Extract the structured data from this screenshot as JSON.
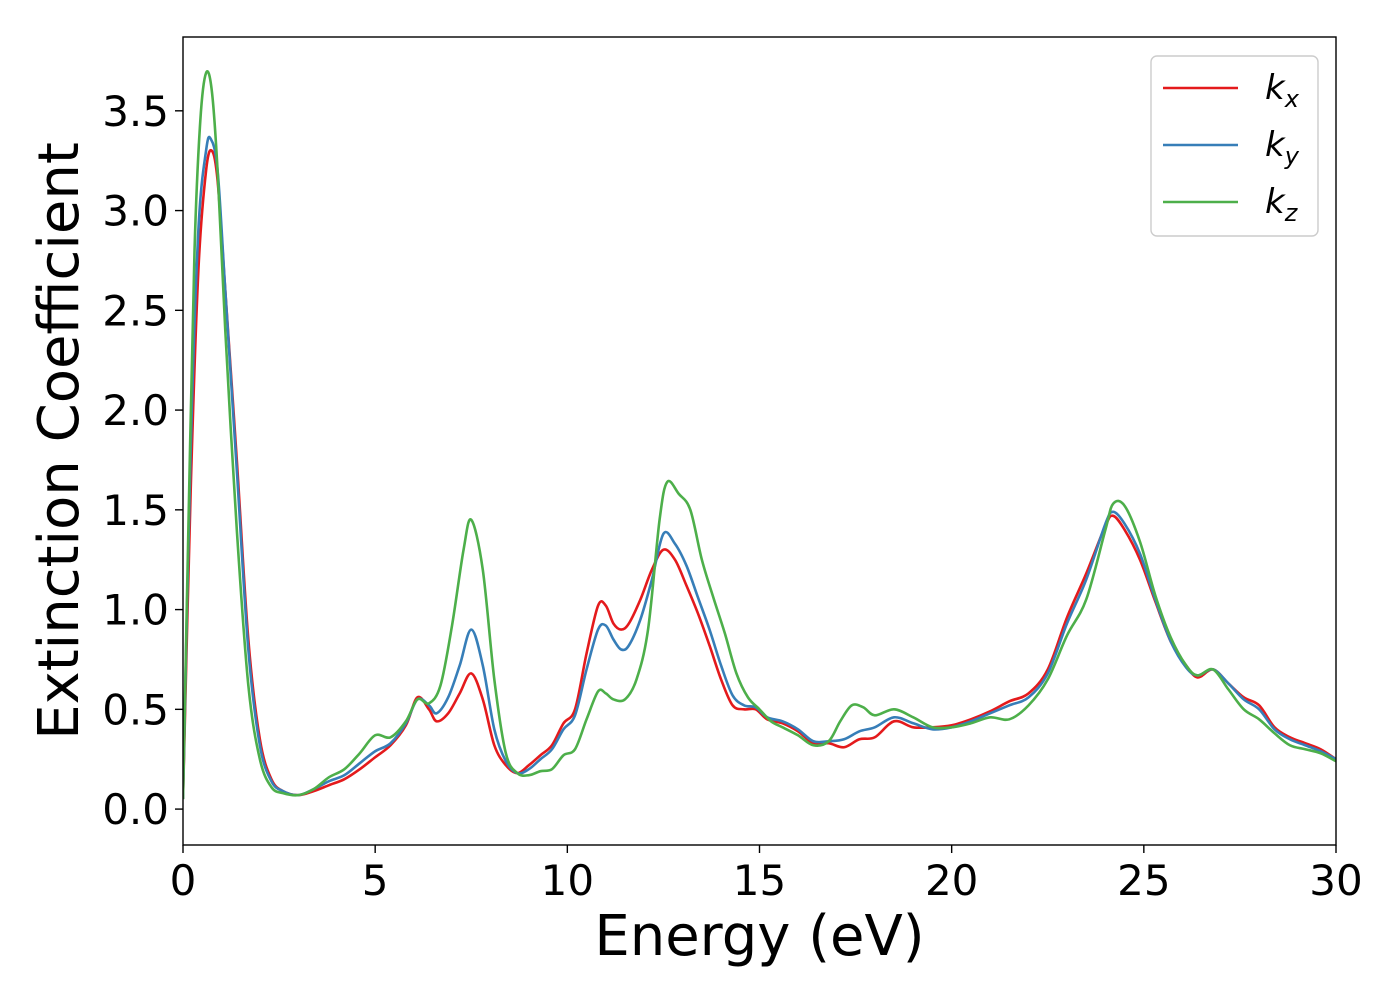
{
  "chart_data": {
    "type": "line",
    "title": "",
    "xlabel": "Energy (eV)",
    "ylabel": "Extinction Coefficient",
    "xlim": [
      0,
      30
    ],
    "ylim": [
      -0.18,
      3.87
    ],
    "xticks": [
      0,
      5,
      10,
      15,
      20,
      25,
      30
    ],
    "xtick_labels": [
      "0",
      "5",
      "10",
      "15",
      "20",
      "25",
      "30"
    ],
    "yticks": [
      0.0,
      0.5,
      1.0,
      1.5,
      2.0,
      2.5,
      3.0,
      3.5
    ],
    "ytick_labels": [
      "0.0",
      "0.5",
      "1.0",
      "1.5",
      "2.0",
      "2.5",
      "3.0",
      "3.5"
    ],
    "grid": false,
    "legend_position": "top-right",
    "series": [
      {
        "name": "k_x",
        "label_main": "k",
        "label_sub": "x",
        "color": "#e41a1c",
        "x": [
          0,
          0.2,
          0.4,
          0.6,
          0.75,
          0.9,
          1.1,
          1.4,
          1.7,
          2.0,
          2.3,
          2.6,
          3.0,
          3.4,
          3.8,
          4.2,
          4.6,
          5.0,
          5.4,
          5.8,
          6.1,
          6.4,
          6.6,
          6.9,
          7.2,
          7.5,
          7.8,
          8.1,
          8.4,
          8.7,
          9.0,
          9.3,
          9.6,
          9.9,
          10.2,
          10.5,
          10.8,
          11.0,
          11.2,
          11.4,
          11.6,
          11.9,
          12.2,
          12.5,
          12.8,
          13.1,
          13.4,
          13.7,
          14.0,
          14.3,
          14.6,
          14.9,
          15.2,
          15.6,
          16.0,
          16.4,
          16.8,
          17.2,
          17.6,
          18.0,
          18.5,
          19.0,
          19.5,
          20.0,
          20.5,
          21.0,
          21.5,
          22.0,
          22.5,
          23.0,
          23.5,
          24.0,
          24.2,
          24.5,
          24.9,
          25.3,
          25.7,
          26.1,
          26.4,
          26.8,
          27.2,
          27.6,
          28.0,
          28.4,
          28.8,
          29.2,
          29.6,
          30.0
        ],
        "y": [
          0.05,
          1.6,
          2.7,
          3.2,
          3.3,
          3.15,
          2.6,
          1.75,
          0.85,
          0.35,
          0.15,
          0.09,
          0.07,
          0.09,
          0.12,
          0.15,
          0.2,
          0.26,
          0.32,
          0.42,
          0.56,
          0.5,
          0.44,
          0.48,
          0.58,
          0.68,
          0.55,
          0.32,
          0.22,
          0.18,
          0.22,
          0.27,
          0.32,
          0.43,
          0.5,
          0.78,
          1.02,
          1.02,
          0.93,
          0.9,
          0.93,
          1.05,
          1.2,
          1.3,
          1.25,
          1.12,
          0.98,
          0.82,
          0.65,
          0.52,
          0.5,
          0.5,
          0.45,
          0.43,
          0.39,
          0.33,
          0.33,
          0.31,
          0.35,
          0.36,
          0.44,
          0.41,
          0.41,
          0.42,
          0.45,
          0.49,
          0.54,
          0.58,
          0.7,
          0.96,
          1.18,
          1.42,
          1.47,
          1.4,
          1.25,
          1.04,
          0.84,
          0.72,
          0.66,
          0.7,
          0.63,
          0.56,
          0.52,
          0.41,
          0.36,
          0.33,
          0.3,
          0.25
        ]
      },
      {
        "name": "k_y",
        "label_main": "k",
        "label_sub": "y",
        "color": "#377eb8",
        "x": [
          0,
          0.2,
          0.4,
          0.6,
          0.72,
          0.9,
          1.1,
          1.4,
          1.7,
          2.0,
          2.3,
          2.6,
          3.0,
          3.4,
          3.8,
          4.2,
          4.6,
          5.0,
          5.4,
          5.8,
          6.1,
          6.4,
          6.6,
          6.9,
          7.2,
          7.5,
          7.8,
          8.1,
          8.4,
          8.7,
          9.0,
          9.3,
          9.6,
          9.9,
          10.2,
          10.5,
          10.8,
          11.0,
          11.2,
          11.4,
          11.6,
          11.9,
          12.2,
          12.5,
          12.8,
          13.1,
          13.4,
          13.7,
          14.0,
          14.3,
          14.6,
          14.9,
          15.2,
          15.6,
          16.0,
          16.4,
          16.8,
          17.2,
          17.6,
          18.0,
          18.5,
          19.0,
          19.5,
          20.0,
          20.5,
          21.0,
          21.5,
          22.0,
          22.5,
          23.0,
          23.5,
          24.0,
          24.2,
          24.5,
          24.9,
          25.3,
          25.7,
          26.1,
          26.4,
          26.8,
          27.2,
          27.6,
          28.0,
          28.4,
          28.8,
          29.2,
          29.6,
          30.0
        ],
        "y": [
          0.05,
          1.8,
          2.9,
          3.3,
          3.36,
          3.2,
          2.6,
          1.7,
          0.8,
          0.32,
          0.14,
          0.09,
          0.07,
          0.1,
          0.14,
          0.17,
          0.23,
          0.29,
          0.33,
          0.43,
          0.55,
          0.52,
          0.48,
          0.56,
          0.72,
          0.9,
          0.72,
          0.4,
          0.24,
          0.18,
          0.2,
          0.25,
          0.3,
          0.4,
          0.47,
          0.7,
          0.9,
          0.92,
          0.85,
          0.8,
          0.82,
          0.95,
          1.15,
          1.38,
          1.33,
          1.22,
          1.06,
          0.9,
          0.72,
          0.57,
          0.52,
          0.51,
          0.46,
          0.44,
          0.4,
          0.34,
          0.34,
          0.35,
          0.39,
          0.41,
          0.46,
          0.43,
          0.4,
          0.41,
          0.44,
          0.48,
          0.52,
          0.56,
          0.68,
          0.93,
          1.15,
          1.43,
          1.49,
          1.43,
          1.28,
          1.05,
          0.84,
          0.71,
          0.67,
          0.7,
          0.63,
          0.55,
          0.5,
          0.4,
          0.35,
          0.32,
          0.29,
          0.25
        ]
      },
      {
        "name": "k_z",
        "label_main": "k",
        "label_sub": "z",
        "color": "#4daf4a",
        "x": [
          0,
          0.15,
          0.3,
          0.45,
          0.6,
          0.75,
          0.9,
          1.1,
          1.4,
          1.7,
          2.0,
          2.3,
          2.6,
          3.0,
          3.4,
          3.8,
          4.2,
          4.6,
          5.0,
          5.4,
          5.8,
          6.1,
          6.4,
          6.7,
          7.0,
          7.3,
          7.5,
          7.8,
          8.1,
          8.4,
          8.7,
          9.0,
          9.3,
          9.6,
          9.9,
          10.2,
          10.5,
          10.8,
          11.0,
          11.2,
          11.5,
          11.8,
          12.1,
          12.4,
          12.6,
          12.9,
          13.2,
          13.5,
          13.8,
          14.1,
          14.4,
          14.7,
          15.0,
          15.3,
          15.6,
          16.0,
          16.4,
          16.8,
          17.1,
          17.4,
          17.7,
          18.0,
          18.5,
          19.0,
          19.5,
          20.0,
          20.5,
          21.0,
          21.5,
          22.0,
          22.5,
          23.0,
          23.5,
          24.0,
          24.2,
          24.5,
          24.9,
          25.3,
          25.7,
          26.1,
          26.4,
          26.8,
          27.2,
          27.6,
          28.0,
          28.4,
          28.8,
          29.2,
          29.6,
          30.0
        ],
        "y": [
          0.05,
          1.5,
          2.8,
          3.45,
          3.69,
          3.6,
          3.2,
          2.4,
          1.4,
          0.62,
          0.25,
          0.11,
          0.08,
          0.07,
          0.1,
          0.16,
          0.2,
          0.28,
          0.37,
          0.36,
          0.44,
          0.55,
          0.53,
          0.62,
          0.92,
          1.3,
          1.45,
          1.2,
          0.65,
          0.28,
          0.18,
          0.17,
          0.19,
          0.2,
          0.27,
          0.3,
          0.45,
          0.59,
          0.58,
          0.55,
          0.55,
          0.65,
          0.9,
          1.45,
          1.64,
          1.58,
          1.5,
          1.25,
          1.06,
          0.88,
          0.68,
          0.56,
          0.5,
          0.44,
          0.41,
          0.37,
          0.32,
          0.34,
          0.44,
          0.52,
          0.51,
          0.47,
          0.5,
          0.46,
          0.41,
          0.41,
          0.43,
          0.46,
          0.45,
          0.52,
          0.65,
          0.87,
          1.05,
          1.4,
          1.53,
          1.52,
          1.34,
          1.07,
          0.86,
          0.72,
          0.67,
          0.7,
          0.6,
          0.5,
          0.45,
          0.38,
          0.32,
          0.3,
          0.28,
          0.24
        ]
      }
    ]
  }
}
